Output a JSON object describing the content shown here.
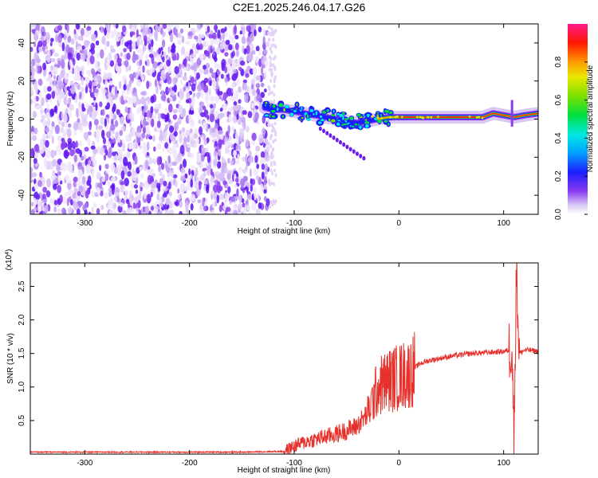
{
  "title": "C2E1.2025.246.04.17.G26",
  "chart_data": [
    {
      "type": "heatmap",
      "xlabel": "Height of straight line (km)",
      "ylabel": "Frequency (Hz)",
      "xlim": [
        -352,
        133
      ],
      "ylim": [
        -50,
        50
      ],
      "xticks": [
        -300,
        -200,
        -100,
        0,
        100
      ],
      "yticks": [
        -40,
        -20,
        0,
        20,
        40
      ],
      "noise_region_x": [
        -352,
        -125
      ],
      "signal_track": {
        "x": [
          -128,
          -120,
          -110,
          -100,
          -90,
          -80,
          -70,
          -60,
          -50,
          -40,
          -30,
          -20,
          -10,
          0,
          20,
          40,
          60,
          80,
          90,
          100,
          110,
          120,
          133
        ],
        "frequency": [
          6,
          5,
          5,
          4,
          3,
          2,
          1,
          0,
          -1,
          -2,
          -1,
          0,
          1,
          1,
          1,
          1,
          1,
          1,
          3,
          2,
          1,
          2,
          3
        ]
      },
      "colorbar": {
        "label": "Normalized spectral amplitude",
        "range": [
          0,
          1
        ],
        "ticks": [
          "0.0",
          "0.2",
          "0.4",
          "0.6",
          "0.8"
        ]
      }
    },
    {
      "type": "line",
      "xlabel": "Height of straight line (km)",
      "ylabel": "SNR (10 * v/v)",
      "yscale_label": "(x10",
      "yscale_exp": "4",
      "xlim": [
        -352,
        133
      ],
      "ylim": [
        0,
        2.85
      ],
      "xticks": [
        -300,
        -200,
        -100,
        0,
        100
      ],
      "yticks": [
        "0.5",
        "1.0",
        "1.5",
        "2.0",
        "2.5"
      ],
      "color": "#e8302a",
      "series": [
        {
          "x": [
            -352,
            -300,
            -250,
            -200,
            -150,
            -110,
            -105,
            -100,
            -90,
            -80,
            -70,
            -60,
            -50,
            -40,
            -30,
            -25,
            -20,
            -15,
            -10,
            -5,
            0,
            5,
            10,
            15,
            20,
            30,
            40,
            50,
            60,
            70,
            80,
            90,
            100,
            105,
            108,
            110,
            112,
            115,
            120,
            125,
            133
          ],
          "y": [
            0.03,
            0.03,
            0.03,
            0.03,
            0.03,
            0.04,
            0.08,
            0.12,
            0.18,
            0.22,
            0.26,
            0.3,
            0.35,
            0.42,
            0.6,
            0.8,
            1.0,
            1.05,
            1.1,
            1.12,
            1.15,
            1.18,
            1.2,
            1.28,
            1.35,
            1.4,
            1.43,
            1.46,
            1.48,
            1.5,
            1.51,
            1.52,
            1.53,
            1.55,
            1.65,
            0.15,
            2.85,
            1.5,
            1.55,
            1.55,
            1.53
          ]
        }
      ]
    }
  ]
}
